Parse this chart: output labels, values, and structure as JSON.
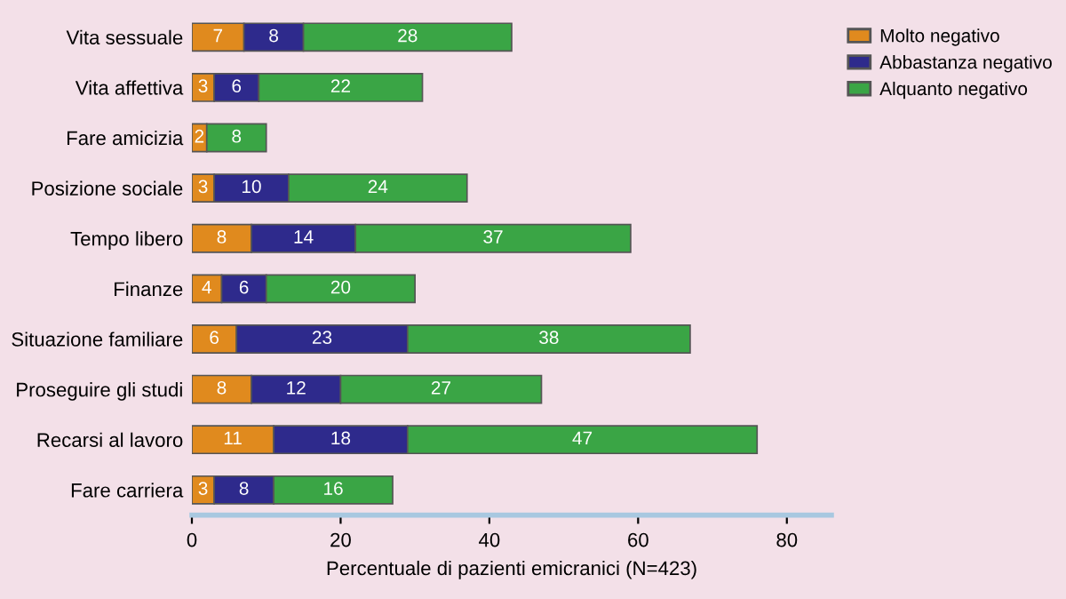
{
  "chart_data": {
    "type": "bar",
    "orientation": "horizontal",
    "stacked": true,
    "data_labels": true,
    "legend": "top right",
    "grid": false,
    "xlabel": "Percentuale di pazienti emicranici (N=423)",
    "xlim": [
      0,
      86
    ],
    "xticks": [
      0,
      20,
      40,
      60,
      80
    ],
    "categories": [
      "Vita sessuale",
      "Vita affettiva",
      "Fare amicizia",
      "Posizione sociale",
      "Tempo libero",
      "Finanze",
      "Situazione familiare",
      "Proseguire gli studi",
      "Recarsi al lavoro",
      "Fare carriera"
    ],
    "series": [
      {
        "name": "Molto negativo",
        "color": "#e08a1e",
        "values": [
          7,
          3,
          2,
          3,
          8,
          4,
          6,
          8,
          11,
          3
        ]
      },
      {
        "name": "Abbastanza negativo",
        "color": "#2e2a8c",
        "values": [
          8,
          6,
          null,
          10,
          14,
          6,
          23,
          12,
          18,
          8
        ]
      },
      {
        "name": "Alquanto negativo",
        "color": "#3aa545",
        "values": [
          28,
          22,
          8,
          24,
          37,
          20,
          38,
          27,
          47,
          16
        ]
      }
    ]
  }
}
